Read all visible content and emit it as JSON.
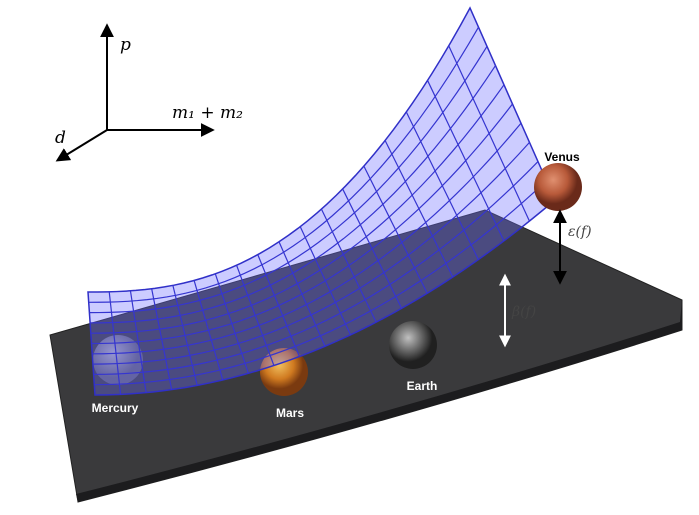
{
  "axes": {
    "vertical": "p",
    "horizontal": "m₁ + m₂",
    "depth": "d"
  },
  "planets": [
    {
      "label": "Mercury"
    },
    {
      "label": "Mars"
    },
    {
      "label": "Earth"
    },
    {
      "label": "Venus"
    }
  ],
  "gaps": [
    {
      "label": "ε(f)"
    },
    {
      "label": "β(f)"
    }
  ]
}
